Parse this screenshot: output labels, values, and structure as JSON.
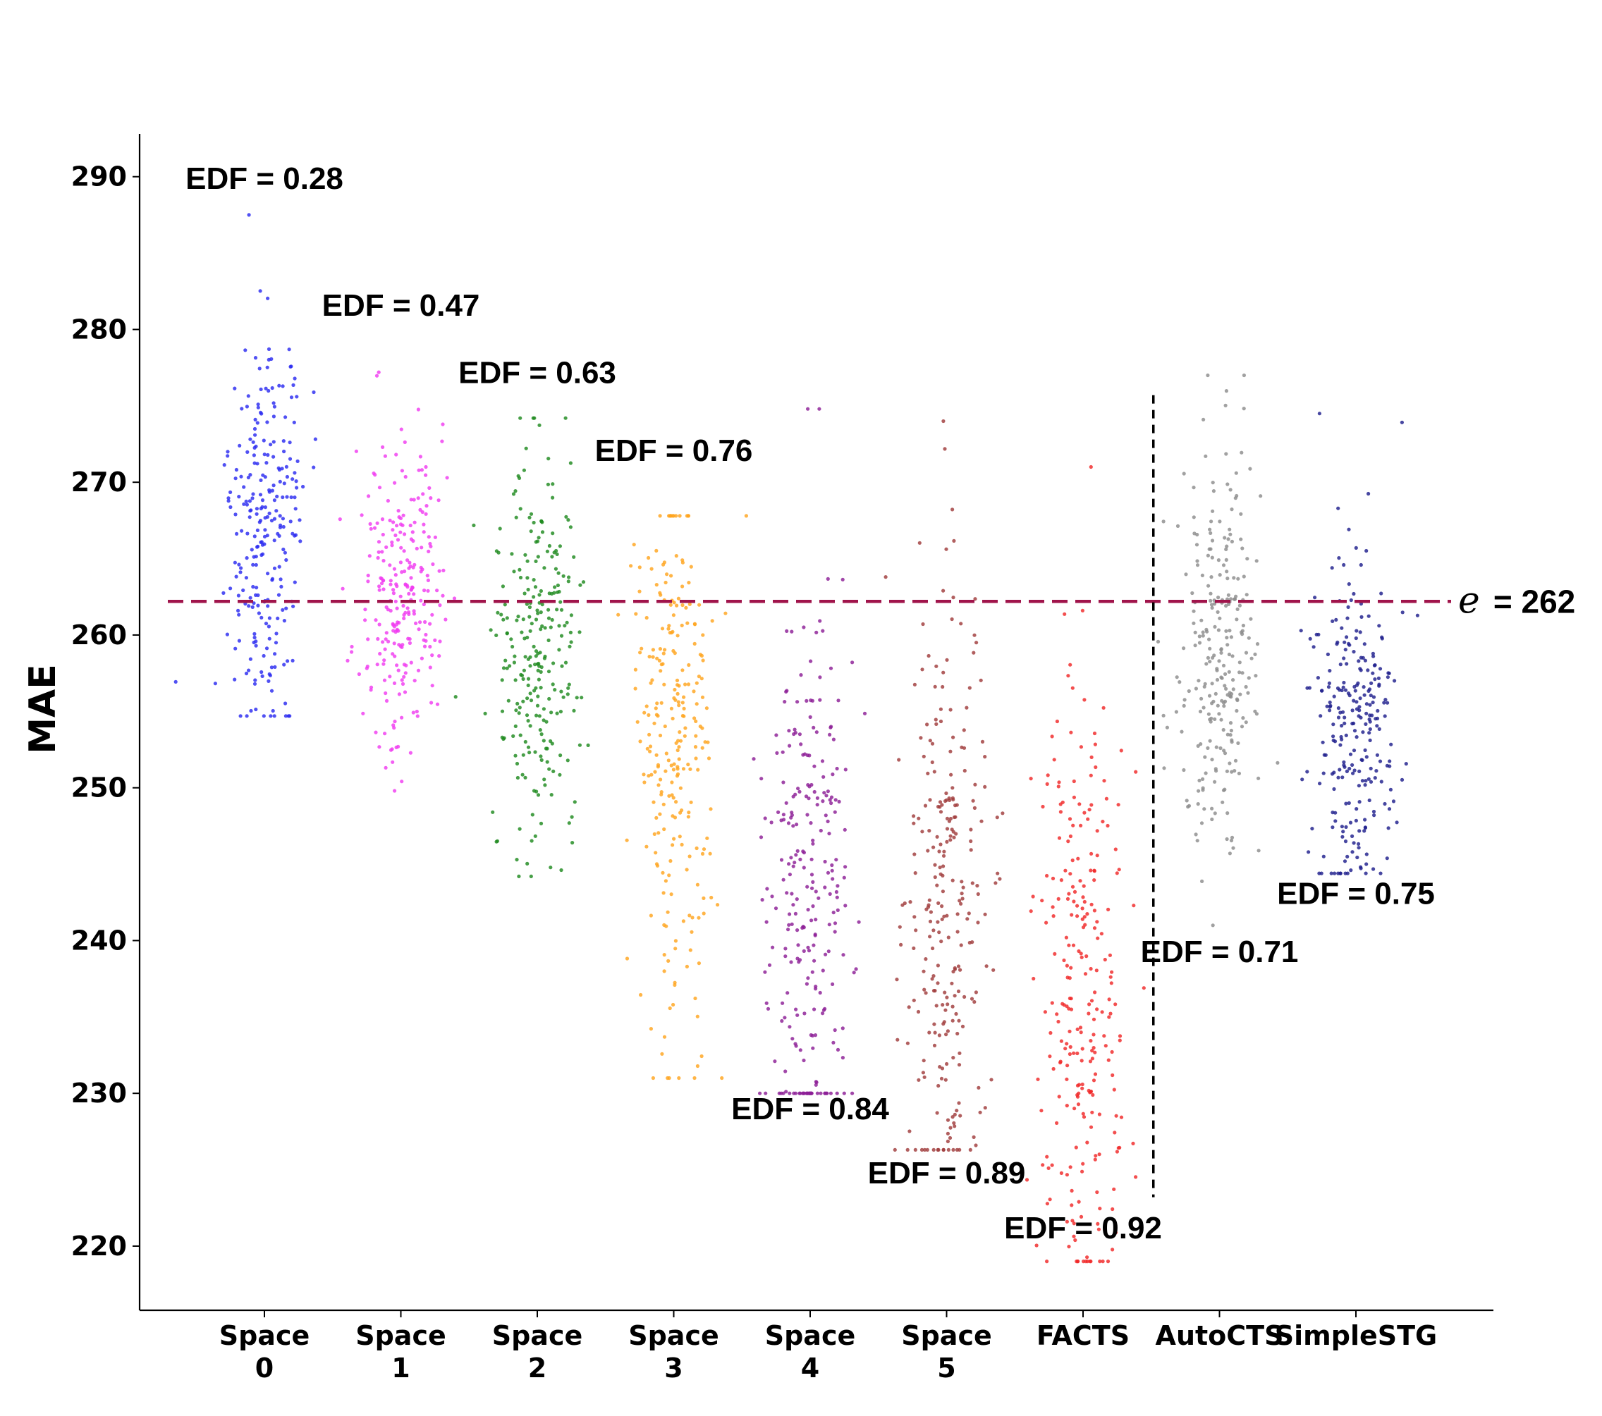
{
  "chart_data": {
    "type": "scatter",
    "title": "",
    "xlabel": "",
    "ylabel": "MAE",
    "ylim": [
      215.8,
      292.8
    ],
    "yticks": [
      220,
      230,
      240,
      250,
      260,
      270,
      280,
      290
    ],
    "categories": [
      {
        "line1": "Space",
        "line2": "0"
      },
      {
        "line1": "Space",
        "line2": "1"
      },
      {
        "line1": "Space",
        "line2": "2"
      },
      {
        "line1": "Space",
        "line2": "3"
      },
      {
        "line1": "Space",
        "line2": "4"
      },
      {
        "line1": "Space",
        "line2": "5"
      },
      {
        "line1": "FACTS",
        "line2": ""
      },
      {
        "line1": "AutoCTS",
        "line2": ""
      },
      {
        "line1": "SimpleSTG",
        "line2": ""
      }
    ],
    "series": [
      {
        "name": "Space 0",
        "color": "#2b2bf0",
        "mean": 267,
        "spread": 6.5,
        "min": 254.7,
        "max": 287.5,
        "count": 260
      },
      {
        "name": "Space 1",
        "color": "#f03cf0",
        "mean": 263,
        "spread": 5.0,
        "min": 249.8,
        "max": 277.2,
        "count": 260
      },
      {
        "name": "Space 2",
        "color": "#1e8a1e",
        "mean": 259,
        "spread": 6.0,
        "min": 244.2,
        "max": 274.2,
        "count": 260
      },
      {
        "name": "Space 3",
        "color": "#ffa51e",
        "mean": 253,
        "spread": 9.0,
        "min": 231.0,
        "max": 267.8,
        "count": 260
      },
      {
        "name": "Space 4",
        "color": "#8c1e96",
        "mean": 244,
        "spread": 10.0,
        "min": 230.0,
        "max": 274.8,
        "count": 260
      },
      {
        "name": "Space 5",
        "color": "#a03c3c",
        "mean": 242,
        "spread": 10.5,
        "min": 226.3,
        "max": 274.0,
        "count": 260
      },
      {
        "name": "FACTS",
        "color": "#f02828",
        "mean": 236,
        "spread": 10.0,
        "min": 219.0,
        "max": 271.0,
        "count": 260
      },
      {
        "name": "AutoCTS",
        "color": "#8c8c8c",
        "mean": 259,
        "spread": 6.5,
        "min": 241.0,
        "max": 277.0,
        "count": 260
      },
      {
        "name": "SimpleSTG",
        "color": "#1e1e8c",
        "mean": 254,
        "spread": 5.5,
        "min": 244.4,
        "max": 274.5,
        "count": 260
      }
    ],
    "annotations": [
      {
        "text": "EDF = 0.28",
        "category": 0,
        "y": 289.2
      },
      {
        "text": "EDF = 0.47",
        "category": 1,
        "y": 280.9
      },
      {
        "text": "EDF = 0.63",
        "category": 2,
        "y": 276.5
      },
      {
        "text": "EDF = 0.76",
        "category": 3,
        "y": 271.4
      },
      {
        "text": "EDF = 0.84",
        "category": 4,
        "y": 228.3
      },
      {
        "text": "EDF = 0.89",
        "category": 5,
        "y": 224.1
      },
      {
        "text": "EDF = 0.92",
        "category": 6,
        "y": 220.5
      },
      {
        "text": "EDF = 0.71",
        "category": 7,
        "y": 238.6
      },
      {
        "text": "EDF = 0.75",
        "category": 8,
        "y": 242.4
      }
    ],
    "reference_line": {
      "y": 262.2,
      "label_symbol": "e",
      "label_value": "= 262",
      "color": "#a0144b"
    },
    "separator_line": {
      "between": [
        "FACTS",
        "AutoCTS"
      ],
      "y_range": [
        223.2,
        275.7
      ],
      "color": "#000000"
    }
  }
}
